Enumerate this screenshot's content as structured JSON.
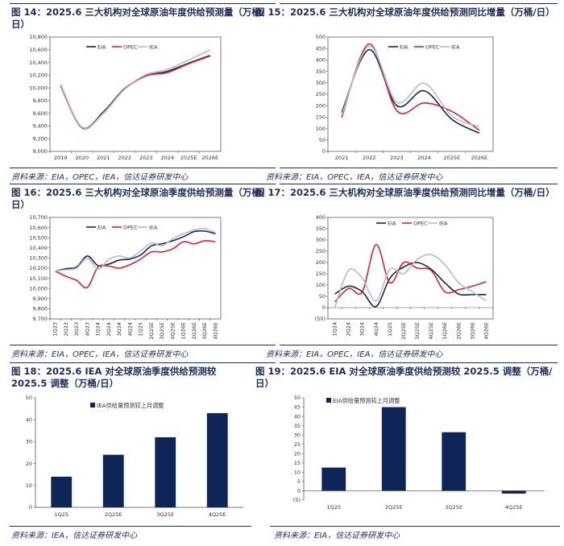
{
  "colors": {
    "eia": "#0f2558",
    "opec": "#e4202b",
    "iea": "#b6bcc6",
    "bar": "#0f2558",
    "title": "#1f2d5a"
  },
  "panels": {
    "f14": {
      "title": "图 14：2025.6 三大机构对全球原油年度供给预测量（万桶/日）",
      "source": "资料来源：EIA，OPEC，IEA，信达证券研发中心"
    },
    "f15": {
      "title": "图 15：2025.6 三大机构对全球原油年度供给预测同比增量（万桶/日）",
      "source": "资料来源：EIA，OPEC，IEA，信达证券研发中心"
    },
    "f16": {
      "title": "图 16：2025.6 三大机构对全球原油季度供给预测量（万桶/日）",
      "source": "资料来源：EIA，OPEC，IEA，信达证券研发中心"
    },
    "f17": {
      "title": "图 17：2025.6 三大机构对全球原油季度供给预测同比增量（万桶/日）",
      "source": "资料来源：EIA，OPEC，IEA，信达证券研发中心"
    },
    "f18": {
      "title": "图 18：2025.6 IEA 对全球原油季度供给预测较 2025.5 调整（万桶/日）",
      "source": "资料来源：IEA，信达证券研发中心"
    },
    "f19": {
      "title": "图 19：2025.6 EIA 对全球原油季度供给预测较 2025.5 调整（万桶/日）",
      "source": "资料来源：EIA，信达证券研发中心"
    }
  },
  "chart_data": [
    {
      "id": "f14",
      "type": "line",
      "x": [
        "2019",
        "2020",
        "2021",
        "2022",
        "2023",
        "2024",
        "2025E",
        "2026E"
      ],
      "yticks": [
        "9,000",
        "9,200",
        "9,400",
        "9,600",
        "9,800",
        "10,000",
        "10,200",
        "10,400",
        "10,600",
        "10,800"
      ],
      "ylim": [
        9000,
        10800
      ],
      "series": [
        {
          "name": "EIA",
          "values": [
            10050,
            9380,
            9620,
            9990,
            10190,
            10260,
            10390,
            10510
          ]
        },
        {
          "name": "OPEC",
          "values": [
            10030,
            9370,
            9600,
            9980,
            10190,
            10240,
            10380,
            10500
          ]
        },
        {
          "name": "IEA",
          "values": [
            10050,
            9380,
            9600,
            9980,
            10210,
            10290,
            10440,
            10600
          ]
        }
      ]
    },
    {
      "id": "f15",
      "type": "line",
      "x": [
        "2021",
        "2022",
        "2023",
        "2024",
        "2025E",
        "2026E"
      ],
      "yticks": [
        "0",
        "50",
        "100",
        "150",
        "200",
        "250",
        "300",
        "350",
        "400",
        "450",
        "500"
      ],
      "ylim": [
        0,
        500
      ],
      "series": [
        {
          "name": "EIA",
          "values": [
            170,
            445,
            200,
            265,
            140,
            80
          ]
        },
        {
          "name": "OPEC",
          "values": [
            148,
            470,
            178,
            212,
            175,
            92
          ]
        },
        {
          "name": "IEA",
          "values": [
            158,
            460,
            215,
            298,
            155,
            108
          ]
        }
      ]
    },
    {
      "id": "f16",
      "type": "line",
      "x": [
        "1Q23",
        "2Q23",
        "3Q23",
        "4Q23",
        "1Q24",
        "2Q24",
        "3Q24",
        "4Q24",
        "1Q25",
        "2Q25E",
        "3Q25E",
        "4Q25E",
        "1Q26E",
        "2Q26E",
        "3Q26E",
        "4Q26E"
      ],
      "yticks": [
        "9,700",
        "9,800",
        "9,900",
        "10,000",
        "10,100",
        "10,200",
        "10,300",
        "10,400",
        "10,500",
        "10,600",
        "10,700"
      ],
      "ylim": [
        9700,
        10700
      ],
      "series": [
        {
          "name": "EIA",
          "values": [
            10170,
            10195,
            10210,
            10320,
            10225,
            10240,
            10280,
            10290,
            10330,
            10420,
            10440,
            10470,
            10510,
            10560,
            10565,
            10540
          ]
        },
        {
          "name": "OPEC",
          "values": [
            10170,
            10120,
            10080,
            10010,
            10210,
            10220,
            10200,
            10235,
            10290,
            10360,
            10360,
            10390,
            10460,
            10440,
            10470,
            10460
          ]
        },
        {
          "name": "IEA",
          "values": [
            10170,
            10185,
            10200,
            10300,
            10190,
            10285,
            10320,
            10300,
            10370,
            10450,
            10420,
            10490,
            10540,
            10575,
            10590,
            10550
          ]
        }
      ]
    },
    {
      "id": "f17",
      "type": "line",
      "x": [
        "1Q24",
        "2Q24",
        "3Q24",
        "4Q24",
        "1Q25",
        "2Q25E",
        "3Q25E",
        "4Q25E",
        "1Q26E",
        "2Q26E",
        "3Q26E",
        "4Q26E"
      ],
      "yticks": [
        "(50)",
        "0",
        "50",
        "100",
        "150",
        "200",
        "250",
        "300",
        "350",
        "400"
      ],
      "ylim": [
        -50,
        400
      ],
      "series": [
        {
          "name": "EIA",
          "values": [
            60,
            95,
            70,
            5,
            130,
            180,
            200,
            170,
            110,
            60,
            58,
            58
          ]
        },
        {
          "name": "OPEC",
          "values": [
            25,
            85,
            70,
            280,
            110,
            200,
            175,
            165,
            70,
            80,
            95,
            115
          ]
        },
        {
          "name": "IEA",
          "values": [
            0,
            165,
            130,
            30,
            170,
            150,
            215,
            235,
            190,
            110,
            70,
            30
          ]
        }
      ]
    },
    {
      "id": "f18",
      "type": "bar",
      "categories": [
        "1Q25",
        "2Q25E",
        "3Q25E",
        "4Q25E"
      ],
      "yticks": [
        "0",
        "10",
        "20",
        "30",
        "40",
        "50"
      ],
      "ylim": [
        0,
        50
      ],
      "series": [
        {
          "name": "IEA供给量预测较上月调整",
          "values": [
            14,
            24,
            32,
            43
          ]
        }
      ]
    },
    {
      "id": "f19",
      "type": "bar",
      "categories": [
        "1Q25",
        "2Q25E",
        "3Q25E",
        "4Q25E"
      ],
      "yticks": [
        "(5)",
        "0",
        "5",
        "10",
        "15",
        "20",
        "25",
        "30",
        "35",
        "40",
        "45",
        "50"
      ],
      "ylim": [
        -5,
        50
      ],
      "series": [
        {
          "name": "EIA供给量预测较上月调整",
          "values": [
            12.5,
            45,
            31.5,
            -1.5
          ]
        }
      ]
    }
  ]
}
